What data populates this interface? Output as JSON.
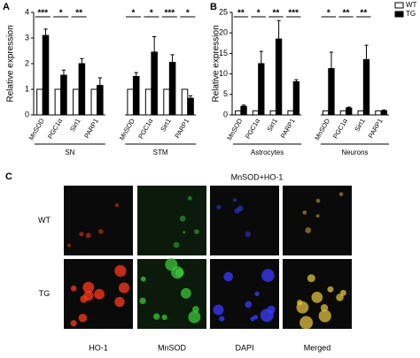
{
  "chart_data": [
    {
      "type": "bar",
      "panel_label": "A",
      "y_label": "Relative expression",
      "categories": [
        "MnSOD",
        "PGC1α",
        "Sirt1",
        "PARP1",
        "MnSOD",
        "PGC1α",
        "Sirt1",
        "PARP1"
      ],
      "groups": [
        "SN",
        "STM"
      ],
      "series": [
        {
          "name": "WT",
          "color": "#ffffff",
          "values": [
            1,
            1,
            1,
            1,
            1,
            1,
            1,
            1
          ]
        },
        {
          "name": "TG",
          "color": "#000000",
          "values": [
            3.1,
            1.55,
            2.0,
            1.15,
            1.5,
            2.45,
            2.05,
            0.65
          ],
          "errors": [
            0.25,
            0.2,
            0.2,
            0.3,
            0.15,
            0.6,
            0.3,
            0.1
          ]
        }
      ],
      "significance": [
        "***",
        "*",
        "**",
        null,
        "*",
        "*",
        "***",
        "*"
      ],
      "ylim": [
        0,
        4
      ],
      "yticks": [
        0,
        1,
        2,
        3,
        4
      ]
    },
    {
      "type": "bar",
      "panel_label": "B",
      "y_label": "Relative expression",
      "categories": [
        "MnSOD",
        "PGC1α",
        "Sirt1",
        "PARP1",
        "MnSOD",
        "PGC1α",
        "Sirt1",
        "PARP1"
      ],
      "groups": [
        "Astrocytes",
        "Neurons"
      ],
      "series": [
        {
          "name": "WT",
          "color": "#ffffff",
          "values": [
            1,
            1,
            1,
            1,
            1,
            1,
            1,
            1
          ]
        },
        {
          "name": "TG",
          "color": "#000000",
          "values": [
            2.1,
            12.5,
            18.5,
            8.1,
            11.3,
            1.7,
            13.5,
            1.0
          ],
          "errors": [
            0.3,
            3.0,
            4.5,
            0.5,
            4.0,
            0.2,
            3.5,
            0.2
          ]
        }
      ],
      "significance": [
        "**",
        "*",
        "**",
        "***",
        "*",
        "**",
        "**",
        null
      ],
      "ylim": [
        0,
        25
      ],
      "yticks": [
        0,
        5,
        10,
        15,
        20,
        25
      ],
      "legend": "top-right"
    }
  ],
  "figure_c": {
    "panel_label": "C",
    "title": "MnSOD+HO-1",
    "rows": [
      "WT",
      "TG"
    ],
    "columns": [
      "HO-1",
      "MnSOD",
      "DAPI",
      "Merged"
    ]
  }
}
